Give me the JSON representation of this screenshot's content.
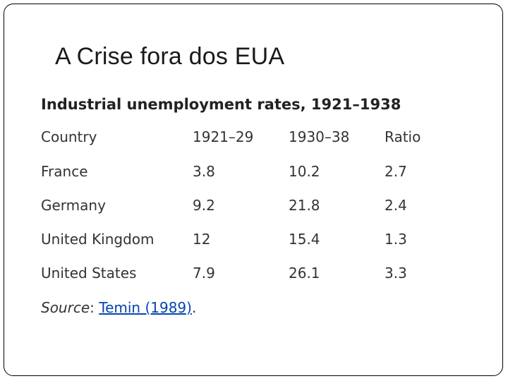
{
  "slide": {
    "title": "A Crise fora dos EUA"
  },
  "table": {
    "title": "Industrial unemployment rates, 1921–1938",
    "headers": [
      "Country",
      "1921–29",
      "1930–38",
      "Ratio"
    ],
    "rows": [
      [
        "France",
        "3.8",
        "10.2",
        "2.7"
      ],
      [
        "Germany",
        "9.2",
        "21.8",
        "2.4"
      ],
      [
        "United Kingdom",
        "12",
        "15.4",
        "1.3"
      ],
      [
        "United States",
        "7.9",
        "26.1",
        "3.3"
      ]
    ]
  },
  "source": {
    "label": "Source",
    "separator": ": ",
    "link_text": "Temin (1989)",
    "trailing": "."
  },
  "colors": {
    "link": "#0645ad",
    "text": "#333333"
  }
}
